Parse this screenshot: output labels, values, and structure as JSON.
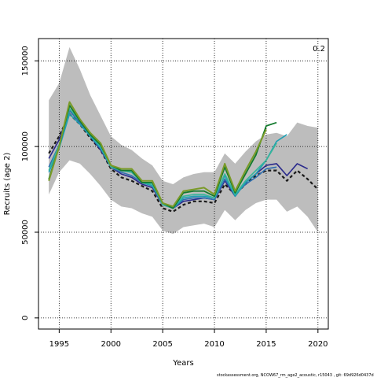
{
  "chart_data": {
    "type": "line",
    "title": "",
    "xlabel": "Years",
    "ylabel": "Recruits (age 2)",
    "xlim": [
      1993,
      2021
    ],
    "ylim": [
      -6500,
      163000
    ],
    "x_ticks": [
      1995,
      2000,
      2005,
      2010,
      2015,
      2020
    ],
    "y_ticks": [
      0,
      50000,
      100000,
      150000
    ],
    "x_tick_labels": [
      "1995",
      "2000",
      "2005",
      "2010",
      "2015",
      "2020"
    ],
    "y_tick_labels": [
      "0",
      "50000",
      "100000",
      "150000"
    ],
    "grid": true,
    "corner_label": "0.2",
    "footnote": "stockassessment.org, NCOW67_rm_age2_acoustic, r15043 , git: 69d926d0437d",
    "band": {
      "x": [
        1994,
        1995,
        1996,
        1997,
        1998,
        1999,
        2000,
        2001,
        2002,
        2003,
        2004,
        2005,
        2006,
        2007,
        2008,
        2009,
        2010,
        2011,
        2012,
        2013,
        2014,
        2015,
        2016,
        2017,
        2018,
        2019,
        2020
      ],
      "upper": [
        127000,
        137000,
        158000,
        145000,
        130000,
        118000,
        106000,
        101000,
        98000,
        93000,
        89000,
        80000,
        78000,
        82000,
        84000,
        85000,
        85000,
        96000,
        90000,
        97000,
        103000,
        107000,
        108000,
        106000,
        114000,
        112000,
        111000
      ],
      "lower": [
        72000,
        85000,
        92000,
        90000,
        84000,
        77000,
        69000,
        65000,
        64000,
        61000,
        59000,
        51000,
        49000,
        53000,
        54000,
        55000,
        53000,
        63000,
        57000,
        63000,
        67000,
        69000,
        69000,
        62000,
        65000,
        59000,
        50000
      ]
    },
    "series": [
      {
        "color": "#1a1a1a",
        "dashed": true,
        "width": 2.2,
        "x": [
          1994,
          1995,
          1996,
          1997,
          1998,
          1999,
          2000,
          2001,
          2002,
          2003,
          2004,
          2005,
          2006,
          2007,
          2008,
          2009,
          2010,
          2011,
          2012,
          2013,
          2014,
          2015,
          2016,
          2017,
          2018,
          2019,
          2020
        ],
        "values": [
          96000,
          106000,
          119000,
          113000,
          105000,
          98000,
          87000,
          82000,
          80000,
          77000,
          74000,
          64000,
          62000,
          66000,
          68000,
          68000,
          67000,
          78000,
          72000,
          78000,
          83000,
          86000,
          86000,
          80000,
          86000,
          81000,
          75000
        ]
      },
      {
        "color": "#2a2a8c",
        "width": 1.6,
        "x": [
          1994,
          1995,
          1996,
          1997,
          1998,
          1999,
          2000,
          2001,
          2002,
          2003,
          2004,
          2005,
          2006,
          2007,
          2008,
          2009,
          2010,
          2011,
          2012,
          2013,
          2014,
          2015,
          2016,
          2017,
          2018,
          2019
        ],
        "values": [
          93000,
          104000,
          121000,
          114000,
          106000,
          98000,
          88000,
          84000,
          82000,
          78000,
          76000,
          66000,
          64000,
          68000,
          69000,
          70000,
          69000,
          80000,
          71000,
          79000,
          84000,
          89000,
          90000,
          83000,
          90000,
          87000
        ]
      },
      {
        "color": "#2f6fb0",
        "width": 1.6,
        "x": [
          1994,
          1995,
          1996,
          1997,
          1998,
          1999,
          2000,
          2001,
          2002,
          2003,
          2004,
          2005,
          2006,
          2007,
          2008,
          2009,
          2010,
          2011,
          2012,
          2013,
          2014,
          2015,
          2016
        ],
        "values": [
          88000,
          101000,
          121000,
          114000,
          106000,
          99000,
          88000,
          85000,
          83000,
          79000,
          77000,
          66000,
          64000,
          69000,
          70000,
          70000,
          69000,
          81000,
          72000,
          78000,
          82000,
          87000,
          88000
        ]
      },
      {
        "color": "#1d9fb3",
        "width": 1.6,
        "x": [
          1994,
          1995,
          1996,
          1997,
          1998,
          1999,
          2000,
          2001,
          2002,
          2003,
          2004,
          2005,
          2006,
          2007,
          2008,
          2009,
          2010,
          2011,
          2012,
          2013,
          2014,
          2015,
          2016,
          2017
        ],
        "values": [
          85000,
          99000,
          119000,
          113000,
          106000,
          99000,
          88000,
          86000,
          85000,
          79000,
          77000,
          67000,
          64000,
          70000,
          71000,
          71000,
          70000,
          83000,
          71000,
          79000,
          84000,
          92000,
          103000,
          107000
        ]
      },
      {
        "color": "#36b59a",
        "width": 1.6,
        "x": [
          1994,
          1995,
          1996,
          1997,
          1998,
          1999,
          2000,
          2001,
          2002,
          2003,
          2004,
          2005,
          2006,
          2007,
          2008,
          2009,
          2010,
          2011,
          2012,
          2013,
          2014,
          2015,
          2016
        ],
        "values": [
          86000,
          101000,
          122000,
          115000,
          107000,
          100000,
          88000,
          86000,
          85000,
          79000,
          78000,
          66000,
          64000,
          71000,
          72000,
          72000,
          70000,
          84000,
          72000,
          80000,
          86000,
          92000,
          102000
        ]
      },
      {
        "color": "#137a2e",
        "width": 1.8,
        "x": [
          1994,
          1995,
          1996,
          1997,
          1998,
          1999,
          2000,
          2001,
          2002,
          2003,
          2004,
          2005,
          2006,
          2007,
          2008,
          2009,
          2010,
          2011,
          2012,
          2013,
          2014,
          2015,
          2016
        ],
        "values": [
          81000,
          100000,
          124000,
          115000,
          107000,
          101000,
          89000,
          86000,
          86000,
          79000,
          79000,
          67000,
          64000,
          73000,
          74000,
          74000,
          71000,
          88000,
          73000,
          84000,
          95000,
          112000,
          114000
        ]
      },
      {
        "color": "#7a9a28",
        "width": 2.0,
        "x": [
          1994,
          1995,
          1996,
          1997,
          1998,
          1999,
          2000,
          2001,
          2002,
          2003,
          2004,
          2005,
          2006,
          2007,
          2008,
          2009,
          2010,
          2011,
          2012,
          2013,
          2014,
          2015
        ],
        "values": [
          80000,
          100000,
          126000,
          116000,
          108000,
          102000,
          89000,
          87000,
          87000,
          80000,
          80000,
          67000,
          65000,
          74000,
          75000,
          76000,
          72000,
          90000,
          74000,
          86000,
          97000,
          110000
        ]
      }
    ]
  }
}
